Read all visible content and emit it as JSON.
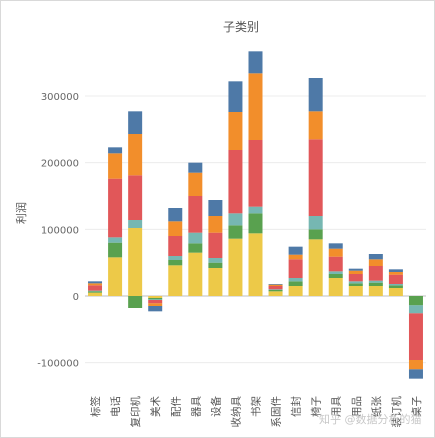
{
  "watermark": "知乎 @数据分析的猫",
  "chart_data": {
    "type": "bar",
    "stacked": true,
    "title": "子类别",
    "ylabel": "利润",
    "xlabel": "",
    "ylim": [
      -135000,
      375000
    ],
    "yticks": [
      -100000,
      0,
      100000,
      200000,
      300000
    ],
    "ytick_labels": [
      "-100000",
      "0",
      "100000",
      "200000",
      "300000"
    ],
    "grid": true,
    "categories": [
      "标签",
      "电话",
      "复印机",
      "美术",
      "配件",
      "器具",
      "设备",
      "收纳具",
      "书架",
      "系固件",
      "信封",
      "椅子",
      "用具",
      "用品",
      "纸张",
      "装订机",
      "桌子"
    ],
    "series": [
      {
        "color": "#edc948",
        "values": [
          5000,
          58000,
          102000,
          -3000,
          46000,
          65000,
          42000,
          86000,
          94000,
          7000,
          15000,
          85000,
          27000,
          15000,
          15000,
          12000,
          0
        ]
      },
      {
        "color": "#59a14f",
        "values": [
          2000,
          22000,
          -18000,
          -2000,
          8000,
          14000,
          8000,
          20000,
          30000,
          2000,
          7000,
          15000,
          6000,
          4000,
          5000,
          4000,
          -14000
        ]
      },
      {
        "color": "#76b7b2",
        "values": [
          1000,
          8000,
          12000,
          -1000,
          6000,
          16000,
          7000,
          18000,
          10000,
          1000,
          5000,
          20000,
          4000,
          3000,
          3000,
          2000,
          -12000
        ]
      },
      {
        "color": "#e15759",
        "values": [
          8000,
          88000,
          67000,
          -5000,
          30000,
          55000,
          38000,
          95000,
          100000,
          5000,
          28000,
          115000,
          22000,
          11000,
          22000,
          14000,
          -70000
        ]
      },
      {
        "color": "#f28e2b",
        "values": [
          3000,
          38000,
          62000,
          -4000,
          22000,
          35000,
          25000,
          57000,
          100000,
          2000,
          7000,
          42000,
          12000,
          5000,
          10000,
          4000,
          -14000
        ]
      },
      {
        "color": "#4e79a7",
        "values": [
          3000,
          9000,
          34000,
          -8000,
          20000,
          15000,
          24000,
          46000,
          33000,
          1000,
          12000,
          50000,
          8000,
          3000,
          8000,
          4000,
          -14000
        ]
      }
    ]
  }
}
